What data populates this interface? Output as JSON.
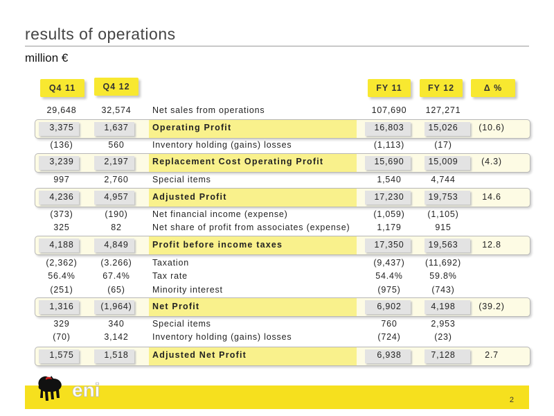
{
  "title": "results of operations",
  "subtitle": "million €",
  "columns": {
    "q4_11": "Q4 11",
    "q4_12": "Q4 12",
    "fy_11": "FY 11",
    "fy_12": "FY 12",
    "delta": "Δ %"
  },
  "rows": [
    {
      "label": "Net sales from operations",
      "q4_11": "29,648",
      "q4_12": "32,574",
      "fy_11": "107,690",
      "fy_12": "127,271",
      "delta": ""
    },
    {
      "label": "Operating Profit",
      "q4_11": "3,375",
      "q4_12": "1,637",
      "fy_11": "16,803",
      "fy_12": "15,026",
      "delta": "(10.6)"
    },
    {
      "label": "Inventory holding (gains) losses",
      "q4_11": "(136)",
      "q4_12": "560",
      "fy_11": "(1,113)",
      "fy_12": "(17)",
      "delta": ""
    },
    {
      "label": "Replacement Cost Operating Profit",
      "q4_11": "3,239",
      "q4_12": "2,197",
      "fy_11": "15,690",
      "fy_12": "15,009",
      "delta": "(4.3)"
    },
    {
      "label": "Special items",
      "q4_11": "997",
      "q4_12": "2,760",
      "fy_11": "1,540",
      "fy_12": "4,744",
      "delta": ""
    },
    {
      "label": "Adjusted Profit",
      "q4_11": "4,236",
      "q4_12": "4,957",
      "fy_11": "17,230",
      "fy_12": "19,753",
      "delta": "14.6"
    },
    {
      "label": "Net financial income (expense)",
      "q4_11": "(373)",
      "q4_12": "(190)",
      "fy_11": "(1,059)",
      "fy_12": "(1,105)",
      "delta": ""
    },
    {
      "label": "Net share of profit from associates (expense)",
      "q4_11": "325",
      "q4_12": "82",
      "fy_11": "1,179",
      "fy_12": "915",
      "delta": ""
    },
    {
      "label": "Profit before income taxes",
      "q4_11": "4,188",
      "q4_12": "4,849",
      "fy_11": "17,350",
      "fy_12": "19,563",
      "delta": "12.8"
    },
    {
      "label": "Taxation",
      "q4_11": "(2,362)",
      "q4_12": "(3.266)",
      "fy_11": "(9,437)",
      "fy_12": "(11,692)",
      "delta": ""
    },
    {
      "label": "Tax rate",
      "q4_11": "56.4%",
      "q4_12": "67.4%",
      "fy_11": "54.4%",
      "fy_12": "59.8%",
      "delta": ""
    },
    {
      "label": "Minority interest",
      "q4_11": "(251)",
      "q4_12": "(65)",
      "fy_11": "(975)",
      "fy_12": "(743)",
      "delta": ""
    },
    {
      "label": "Net Profit",
      "q4_11": "1,316",
      "q4_12": "(1,964)",
      "fy_11": "6,902",
      "fy_12": "4,198",
      "delta": "(39.2)"
    },
    {
      "label": "Special items",
      "q4_11": "329",
      "q4_12": "340",
      "fy_11": "760",
      "fy_12": "2,953",
      "delta": ""
    },
    {
      "label": "Inventory holding (gains) losses",
      "q4_11": "(70)",
      "q4_12": "3,142",
      "fy_11": "(724)",
      "fy_12": "(23)",
      "delta": ""
    },
    {
      "label": "Adjusted Net Profit",
      "q4_11": "1,575",
      "q4_12": "1,518",
      "fy_11": "6,938",
      "fy_12": "7,128",
      "delta": "2.7"
    }
  ],
  "logo_text": "eni",
  "page_number": "2",
  "colors": {
    "accent_yellow": "#f8e830",
    "band_label": "#f9f18c",
    "footer": "#f6e01e"
  }
}
